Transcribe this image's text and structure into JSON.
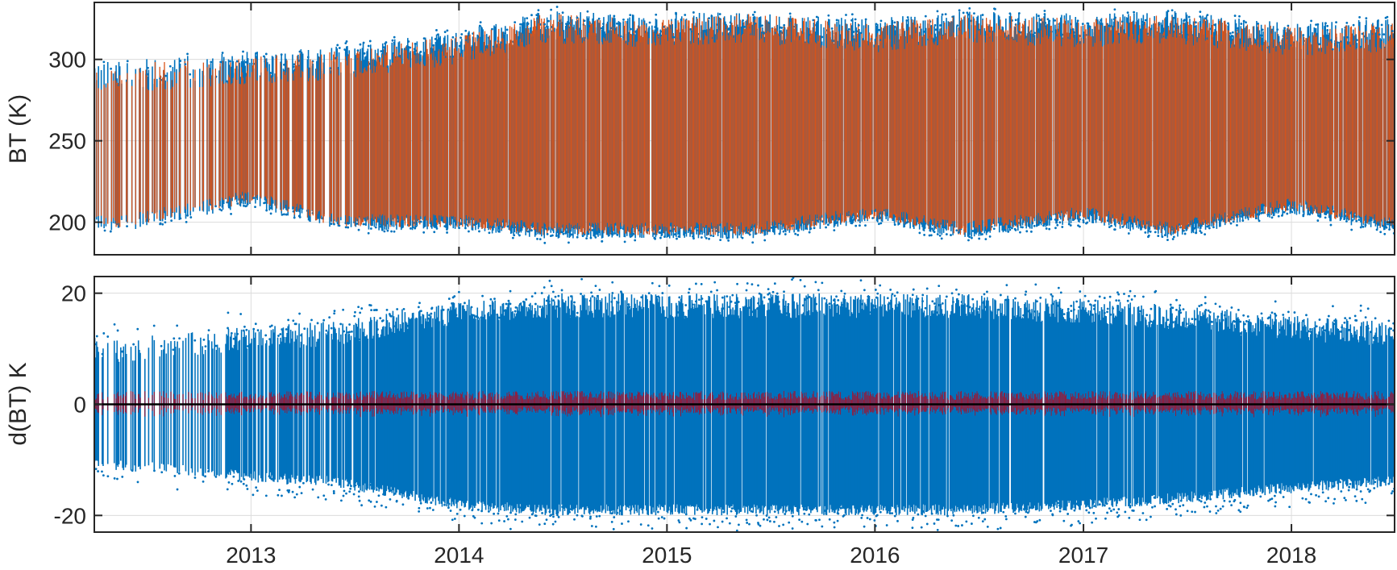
{
  "chart_data": [
    {
      "type": "scatter",
      "panel": "top",
      "ylabel": "BT (K)",
      "xlabel": "",
      "xlim": [
        "2012-04-01",
        "2018-07-01"
      ],
      "ylim": [
        180,
        335
      ],
      "yticks": [
        200,
        250,
        300
      ],
      "xticks": [
        "2013",
        "2014",
        "2015",
        "2016",
        "2017",
        "2018"
      ],
      "grid": true,
      "series": [
        {
          "color": "#0072BD",
          "marker": "dot",
          "envelope_by_year": {
            "x": [
              "2012-06-01",
              "2013-01-01",
              "2013-06-01",
              "2014-01-01",
              "2014-06-01",
              "2015-01-01",
              "2015-06-01",
              "2016-01-01",
              "2016-06-01",
              "2017-01-01",
              "2017-06-01",
              "2018-01-01",
              "2018-06-01"
            ],
            "upper": [
              300,
              305,
              308,
              318,
              330,
              328,
              330,
              325,
              330,
              328,
              330,
              322,
              325
            ],
            "lower": [
              195,
              210,
              195,
              195,
              190,
              190,
              190,
              200,
              190,
              200,
              190,
              205,
              195
            ]
          }
        },
        {
          "color": "#D95319",
          "marker": "line",
          "envelope_by_year": {
            "x": [
              "2012-06-01",
              "2013-01-01",
              "2013-06-01",
              "2014-01-01",
              "2014-06-01",
              "2015-01-01",
              "2015-06-01",
              "2016-01-01",
              "2016-06-01",
              "2017-01-01",
              "2017-06-01",
              "2018-01-01",
              "2018-06-01"
            ],
            "upper": [
              298,
              302,
              305,
              315,
              328,
              325,
              328,
              322,
              328,
              325,
              328,
              320,
              322
            ],
            "lower": [
              197,
              212,
              197,
              197,
              192,
              192,
              192,
              202,
              192,
              202,
              192,
              207,
              197
            ]
          }
        }
      ]
    },
    {
      "type": "scatter",
      "panel": "bottom",
      "ylabel": "d(BT) K",
      "xlabel": "",
      "xlim": [
        "2012-04-01",
        "2018-07-01"
      ],
      "ylim": [
        -23,
        23
      ],
      "yticks": [
        -20,
        0,
        20
      ],
      "xticks": [
        "2013",
        "2014",
        "2015",
        "2016",
        "2017",
        "2018"
      ],
      "grid": true,
      "series": [
        {
          "color": "#0072BD",
          "marker": "dot",
          "envelope_by_year": {
            "x": [
              "2012-06-01",
              "2013-01-01",
              "2013-06-01",
              "2014-01-01",
              "2014-06-01",
              "2015-01-01",
              "2015-06-01",
              "2016-01-01",
              "2016-06-01",
              "2017-01-01",
              "2017-06-01",
              "2018-01-01",
              "2018-06-01"
            ],
            "upper": [
              12,
              14,
              15,
              19,
              20,
              20,
              20,
              20,
              20,
              19,
              18,
              16,
              15
            ],
            "lower": [
              -12,
              -14,
              -15,
              -19,
              -20,
              -20,
              -20,
              -20,
              -20,
              -19,
              -18,
              -16,
              -15
            ]
          }
        },
        {
          "color": "#A2142F",
          "marker": "line",
          "amplitude": 2
        },
        {
          "color": "#000000",
          "marker": "line",
          "value": 0
        }
      ]
    }
  ]
}
